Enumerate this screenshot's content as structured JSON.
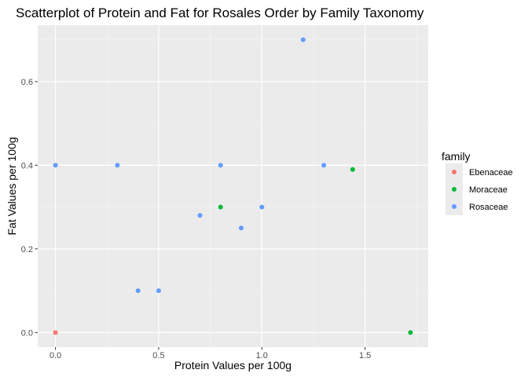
{
  "chart_data": {
    "type": "scatter",
    "title": "Scatterplot of Protein and Fat for Rosales Order by Family Taxonomy",
    "xlabel": "Protein Values per 100g",
    "ylabel": "Fat Values per 100g",
    "xlim": [
      -0.086,
      1.806
    ],
    "ylim": [
      -0.035,
      0.735
    ],
    "x_ticks": [
      0.0,
      0.5,
      1.0,
      1.5
    ],
    "x_tick_labels": [
      "0.0",
      "0.5",
      "1.0",
      "1.5"
    ],
    "y_ticks": [
      0.0,
      0.2,
      0.4,
      0.6
    ],
    "y_tick_labels": [
      "0.0",
      "0.2",
      "0.4",
      "0.6"
    ],
    "grid": true,
    "legend_title": "family",
    "legend_position": "right",
    "series": [
      {
        "name": "Ebenaceae",
        "color": "#F8766D",
        "points": [
          [
            0.0,
            0.0
          ]
        ]
      },
      {
        "name": "Moraceae",
        "color": "#00BA38",
        "points": [
          [
            0.8,
            0.3
          ],
          [
            1.44,
            0.39
          ],
          [
            1.72,
            0.0
          ]
        ]
      },
      {
        "name": "Rosaceae",
        "color": "#619CFF",
        "points": [
          [
            0.0,
            0.4
          ],
          [
            0.3,
            0.4
          ],
          [
            0.4,
            0.1
          ],
          [
            0.5,
            0.1
          ],
          [
            0.7,
            0.28
          ],
          [
            0.8,
            0.4
          ],
          [
            0.9,
            0.25
          ],
          [
            1.0,
            0.3
          ],
          [
            1.2,
            0.7
          ],
          [
            1.3,
            0.4
          ]
        ]
      }
    ]
  }
}
